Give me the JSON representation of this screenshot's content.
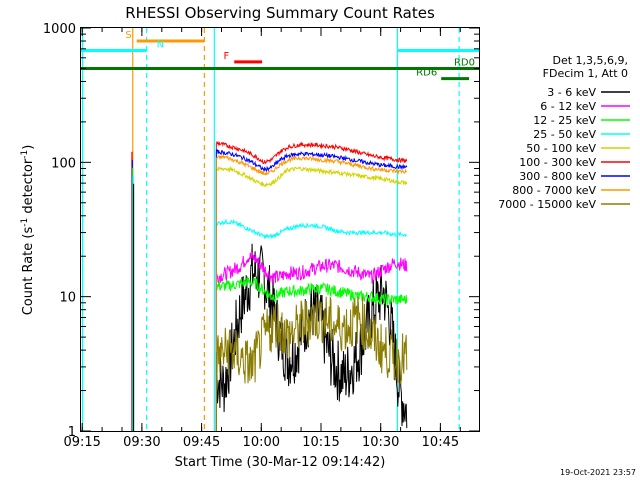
{
  "chart_data": {
    "type": "line",
    "title": "RHESSI Observing Summary Count Rates",
    "xlabel": "Start Time (30-Mar-12 09:14:42)",
    "ylabel_main": "Count Rate (s",
    "ylabel_sup1": "-1",
    "ylabel_mid": " detector",
    "ylabel_sup2": "-1",
    "ylabel_end": ")",
    "y_scale": "log",
    "ylim": [
      1,
      1000
    ],
    "xlim_minutes": [
      0,
      100
    ],
    "x_ticks": [
      {
        "m": 0.3,
        "label": "09:15"
      },
      {
        "m": 15.3,
        "label": "09:30"
      },
      {
        "m": 30.3,
        "label": "09:45"
      },
      {
        "m": 45.3,
        "label": "10:00"
      },
      {
        "m": 60.3,
        "label": "10:15"
      },
      {
        "m": 75.3,
        "label": "10:30"
      },
      {
        "m": 90.3,
        "label": "10:45"
      }
    ],
    "y_ticks": [
      {
        "v": 1,
        "label": "1"
      },
      {
        "v": 10,
        "label": "10"
      },
      {
        "v": 100,
        "label": "100"
      },
      {
        "v": 1000,
        "label": "1000"
      }
    ],
    "legend_header": [
      "Det 1,3,5,6,9,",
      "FDecim 1, Att 0"
    ],
    "series": [
      {
        "name": "3 - 6 keV",
        "color": "#000000",
        "x": [
          34,
          36,
          38,
          40,
          42,
          43,
          44,
          46,
          48,
          50,
          52,
          54,
          56,
          58,
          60,
          62,
          64,
          66,
          68,
          70,
          72,
          74,
          76,
          78,
          80,
          82
        ],
        "y": [
          2.5,
          2.2,
          4,
          8,
          12,
          15,
          15,
          14,
          9,
          5,
          3.5,
          4,
          6,
          8,
          7,
          4,
          3,
          2.5,
          3,
          4,
          6,
          9,
          11,
          6,
          2,
          1.4
        ]
      },
      {
        "name": "6 - 12 keV",
        "color": "#ff00ff",
        "x": [
          34,
          37,
          40,
          42,
          44,
          46,
          48,
          50,
          52,
          55,
          58,
          61,
          64,
          67,
          70,
          73,
          76,
          79,
          82
        ],
        "y": [
          14,
          15,
          17,
          20,
          19,
          16,
          14,
          14,
          15,
          15,
          16,
          17,
          17,
          16,
          15,
          14,
          16,
          18,
          17
        ]
      },
      {
        "name": "12 - 25 keV",
        "color": "#00ff00",
        "x": [
          34,
          37,
          40,
          42,
          44,
          46,
          48,
          50,
          52,
          55,
          58,
          61,
          64,
          67,
          70,
          73,
          76,
          79,
          82
        ],
        "y": [
          12,
          12,
          12.5,
          13,
          12.5,
          11,
          10,
          10.5,
          11,
          11,
          11.5,
          11.5,
          11,
          10.5,
          10,
          10,
          9.5,
          9.5,
          9.5
        ]
      },
      {
        "name": "25 - 50 keV",
        "color": "#00ffff",
        "x": [
          34,
          36,
          38,
          40,
          42,
          44,
          46,
          48,
          50,
          52,
          55,
          58,
          61,
          64,
          67,
          70,
          73,
          76,
          79,
          82
        ],
        "y": [
          35,
          36,
          36,
          34,
          32,
          30,
          28,
          28,
          30,
          32,
          34,
          34,
          33,
          31,
          30,
          30,
          30,
          30,
          29,
          29
        ]
      },
      {
        "name": "50 - 100 keV",
        "color": "#d4d400",
        "x": [
          34,
          36,
          38,
          40,
          42,
          44,
          46,
          48,
          50,
          52,
          55,
          58,
          61,
          64,
          67,
          70,
          73,
          76,
          79,
          82
        ],
        "y": [
          88,
          90,
          88,
          83,
          78,
          72,
          68,
          70,
          78,
          88,
          90,
          88,
          86,
          84,
          82,
          79,
          77,
          75,
          72,
          70
        ]
      },
      {
        "name": "100 - 300 keV",
        "color": "#ff0000",
        "x": [
          34,
          36,
          38,
          40,
          42,
          44,
          46,
          48,
          50,
          52,
          55,
          58,
          61,
          64,
          67,
          70,
          73,
          76,
          79,
          82
        ],
        "y": [
          140,
          135,
          130,
          125,
          118,
          110,
          100,
          105,
          120,
          130,
          135,
          135,
          133,
          130,
          125,
          118,
          112,
          108,
          105,
          102
        ]
      },
      {
        "name": "300 - 800 keV",
        "color": "#0000ff",
        "x": [
          34,
          36,
          38,
          40,
          42,
          44,
          46,
          48,
          50,
          52,
          55,
          58,
          61,
          64,
          67,
          70,
          73,
          76,
          79,
          82
        ],
        "y": [
          120,
          118,
          115,
          110,
          104,
          96,
          88,
          92,
          104,
          112,
          116,
          115,
          113,
          110,
          106,
          102,
          98,
          95,
          93,
          92
        ]
      },
      {
        "name": "800 - 7000 keV",
        "color": "#ff9900",
        "x": [
          34,
          36,
          38,
          40,
          42,
          44,
          46,
          48,
          50,
          52,
          55,
          58,
          61,
          64,
          67,
          70,
          73,
          76,
          79,
          82
        ],
        "y": [
          108,
          110,
          105,
          100,
          94,
          88,
          82,
          85,
          96,
          104,
          108,
          106,
          104,
          102,
          98,
          94,
          90,
          88,
          86,
          85
        ]
      },
      {
        "name": "7000 - 15000 keV",
        "color": "#8b7d00",
        "x": [
          34,
          37,
          40,
          43,
          46,
          49,
          52,
          55,
          58,
          61,
          64,
          67,
          70,
          73,
          76,
          79,
          82
        ],
        "y": [
          3.5,
          4,
          3.5,
          3,
          5,
          6.5,
          5,
          6,
          7,
          7,
          6,
          6,
          7,
          5,
          4,
          3.5,
          3.5
        ]
      }
    ],
    "annotations": [
      {
        "label": "S",
        "color": "#ff9900",
        "x1": 14,
        "x2": 31,
        "y": 800
      },
      {
        "label": "N",
        "color": "#00ffff",
        "x1": 0,
        "x2": 16.5,
        "y": 680
      },
      {
        "label": "F",
        "color": "#ff0000",
        "x1": 38.5,
        "x2": 45.5,
        "y": 560
      },
      {
        "label": "RD0",
        "color": "#007700",
        "x1": 0,
        "x2": 100,
        "y": 500
      },
      {
        "label": "RD6",
        "color": "#007700",
        "x1": 90.5,
        "x2": 97.5,
        "y": 420
      },
      {
        "label": "",
        "color": "#00ffff",
        "x1": 79.5,
        "x2": 100,
        "y": 680
      }
    ],
    "vlines": [
      {
        "m": 13.0,
        "color": "#ff9900",
        "style": "solid"
      },
      {
        "m": 16.5,
        "color": "#00ffff",
        "style": "dashed"
      },
      {
        "m": 31.0,
        "color": "#ff9900",
        "style": "dashed"
      },
      {
        "m": 33.5,
        "color": "#00ffff",
        "style": "solid"
      },
      {
        "m": 79.5,
        "color": "#00ffff",
        "style": "solid"
      },
      {
        "m": 95.0,
        "color": "#00ffff",
        "style": "dashed"
      },
      {
        "m": 0.4,
        "color": "#00ffff",
        "style": "solid"
      }
    ],
    "spike": {
      "m": 12.8,
      "colors": [
        "#ff0000",
        "#0000ff",
        "#00ff00",
        "#00ffff",
        "#000000"
      ],
      "top": 120
    }
  },
  "footer": {
    "date": "19-Oct-2021 23:57"
  }
}
